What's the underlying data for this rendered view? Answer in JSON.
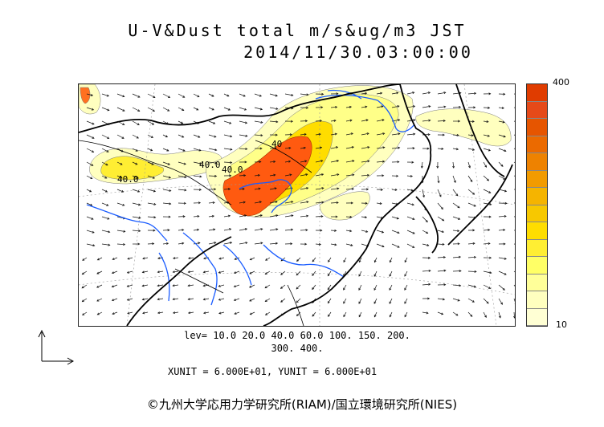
{
  "title": {
    "line1": "U-V&Dust total m/s&ug/m3 JST",
    "line2": "2014/11/30.03:00:00"
  },
  "colorbar": {
    "max_label": "400",
    "min_label": "10",
    "colors": [
      "#ffffd4",
      "#ffffbf",
      "#ffff99",
      "#ffff66",
      "#ffee33",
      "#ffdd00",
      "#f7c800",
      "#f5b400",
      "#f29b00",
      "#ee8200",
      "#eb6a00",
      "#e65500",
      "#e64a19",
      "#e03c00"
    ]
  },
  "levels": {
    "line1": "lev= 10.0 20.0 40.0 60.0 100. 150. 200.",
    "line2": "300. 400."
  },
  "units": {
    "text": "XUNIT = 6.000E+01, YUNIT = 6.000E+01"
  },
  "map_labels": [
    {
      "text": "40.0"
    },
    {
      "text": "40.0"
    },
    {
      "text": "40.0"
    },
    {
      "text": "40"
    }
  ],
  "copyright": {
    "text": "©九州大学応用力学研究所(RIAM)/国立環境研究所(NIES)"
  }
}
